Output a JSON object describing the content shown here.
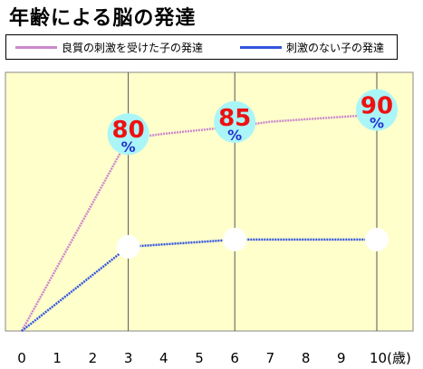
{
  "title": "年齢による脳の発達",
  "chart_data": {
    "type": "line",
    "title": "年齢による脳の発達",
    "xlabel": "",
    "ylabel": "",
    "x_ticks": [
      "0",
      "1",
      "2",
      "3",
      "4",
      "5",
      "6",
      "7",
      "8",
      "9",
      "10(歳)"
    ],
    "xlim": [
      0,
      10
    ],
    "ylim": [
      0,
      100
    ],
    "legend_position": "top",
    "series": [
      {
        "name": "良質の刺激を受けた子の発達",
        "color": "#cc88cc",
        "x": [
          0,
          3,
          4,
          5,
          6,
          7,
          8,
          9,
          10
        ],
        "y": [
          0,
          80,
          82,
          83.5,
          85,
          87,
          88,
          89,
          90
        ]
      },
      {
        "name": "刺激のない子の発達",
        "color": "#3355dd",
        "x": [
          0,
          3,
          4,
          5,
          6,
          7,
          8,
          9,
          10
        ],
        "y": [
          0,
          35,
          36,
          37,
          38,
          38,
          38,
          38,
          38
        ]
      }
    ],
    "annotations": [
      {
        "x": 3,
        "y": 80,
        "value": "80",
        "unit": "%"
      },
      {
        "x": 6,
        "y": 85,
        "value": "85",
        "unit": "%"
      },
      {
        "x": 10,
        "y": 90,
        "value": "90",
        "unit": "%"
      }
    ],
    "markers": [
      {
        "x": 3,
        "y": 35
      },
      {
        "x": 6,
        "y": 38
      },
      {
        "x": 10,
        "y": 38
      }
    ],
    "vertical_gridlines_at": [
      3,
      6,
      10
    ]
  },
  "colors": {
    "plot_background": "#ffffcc",
    "annotation_circle": "#aaf5f8",
    "annotation_number": "#ee1111",
    "annotation_unit": "#2233cc",
    "marker_fill": "#ffffff"
  }
}
